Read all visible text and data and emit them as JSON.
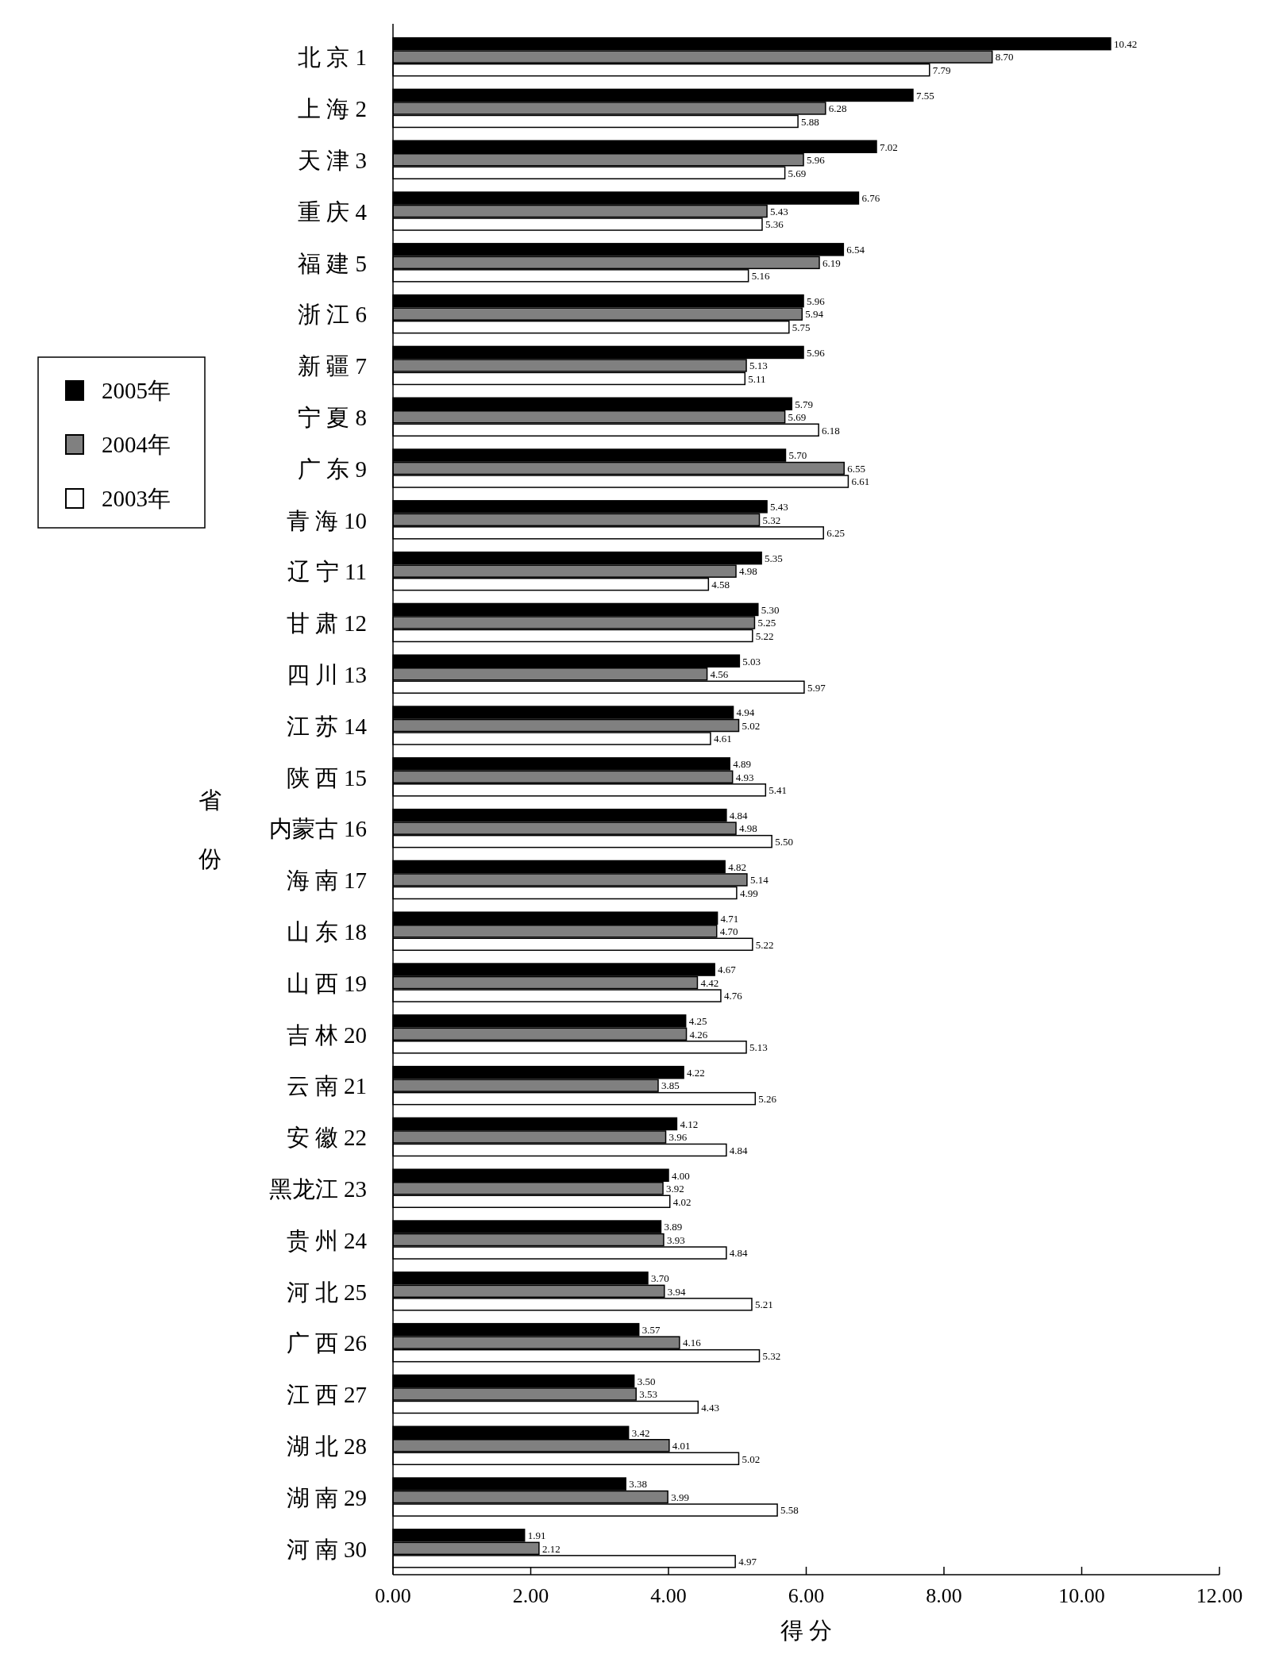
{
  "chart_data": {
    "type": "bar",
    "orientation": "horizontal",
    "xlabel": "得 分",
    "ylabel": "省份",
    "categories": [
      "北 京 1",
      "上 海 2",
      "天 津 3",
      "重 庆 4",
      "福 建 5",
      "浙 江 6",
      "新 疆 7",
      "宁 夏 8",
      "广 东 9",
      "青 海 10",
      "辽 宁 11",
      "甘 肃 12",
      "四 川 13",
      "江 苏 14",
      "陕 西 15",
      "内蒙古 16",
      "海 南 17",
      "山 东 18",
      "山 西 19",
      "吉 林 20",
      "云 南 21",
      "安 徽 22",
      "黑龙江 23",
      "贵 州 24",
      "河 北 25",
      "广 西 26",
      "江 西 27",
      "湖 北 28",
      "湖 南 29",
      "河 南 30"
    ],
    "series": [
      {
        "name": "2005年",
        "color": "#000000",
        "values": [
          10.42,
          7.55,
          7.02,
          6.76,
          6.54,
          5.96,
          5.96,
          5.79,
          5.7,
          5.43,
          5.35,
          5.3,
          5.03,
          4.94,
          4.89,
          4.84,
          4.82,
          4.71,
          4.67,
          4.25,
          4.22,
          4.12,
          4.0,
          3.89,
          3.7,
          3.57,
          3.5,
          3.42,
          3.38,
          1.91
        ],
        "value_labels": [
          "10.42",
          "7.55",
          "7.02",
          "6.76",
          "6.54",
          "5.96",
          "5.96",
          "5.79",
          "5.70",
          "5.43",
          "5.35",
          "5.30",
          "5.03",
          "4.94",
          "4.89",
          "4.84",
          "4.82",
          "4.71",
          "4.67",
          "4.25",
          "4.22",
          "4.12",
          "4.00",
          "3.89",
          "3.70",
          "3.57",
          "3.50",
          "3.42",
          "3.38",
          "1.91"
        ]
      },
      {
        "name": "2004年",
        "color": "#808080",
        "values": [
          8.7,
          6.28,
          5.96,
          5.43,
          6.19,
          5.94,
          5.13,
          5.69,
          6.55,
          5.32,
          4.98,
          5.25,
          4.56,
          5.02,
          4.93,
          4.98,
          5.14,
          4.7,
          4.42,
          4.26,
          3.85,
          3.96,
          3.92,
          3.93,
          3.94,
          4.16,
          3.53,
          4.01,
          3.99,
          2.12
        ],
        "value_labels": [
          "8.70",
          "6.28",
          "5.96",
          "5.43",
          "6.19",
          "5.94",
          "5.13",
          "5.69",
          "6.55",
          "5.32",
          "4.98",
          "5.25",
          "4.56",
          "5.02",
          "4.93",
          "4.98",
          "5.14",
          "4.70",
          "4.42",
          "4.26",
          "3.85",
          "3.96",
          "3.92",
          "3.93",
          "3.94",
          "4.16",
          "3.53",
          "4.01",
          "3.99",
          "2.12"
        ]
      },
      {
        "name": "2003年",
        "color": "#ffffff",
        "values": [
          7.79,
          5.88,
          5.69,
          5.36,
          5.16,
          5.75,
          5.11,
          6.18,
          6.61,
          6.25,
          4.58,
          5.22,
          5.97,
          4.61,
          5.41,
          5.5,
          4.99,
          5.22,
          4.76,
          5.13,
          5.26,
          4.84,
          4.02,
          4.84,
          5.21,
          5.32,
          4.43,
          5.02,
          5.58,
          4.97
        ],
        "value_labels": [
          "7.79",
          "5.88",
          "5.69",
          "5.36",
          "5.16",
          "5.75",
          "5.11",
          "6.18",
          "6.61",
          "6.25",
          "4.58",
          "5.22",
          "5.97",
          "4.61",
          "5.41",
          "5.50",
          "4.99",
          "5.22",
          "4.76",
          "5.13",
          "5.26",
          "4.84",
          "4.02",
          "4.84",
          "5.21",
          "5.32",
          "4.43",
          "5.02",
          "5.58",
          "4.97"
        ]
      }
    ],
    "xlim": [
      0,
      12
    ],
    "xticks": [
      {
        "value": 0,
        "label": "0.00"
      },
      {
        "value": 2,
        "label": "2.00"
      },
      {
        "value": 4,
        "label": "4.00"
      },
      {
        "value": 6,
        "label": "6.00"
      },
      {
        "value": 8,
        "label": "8.00"
      },
      {
        "value": 10,
        "label": "10.00"
      },
      {
        "value": 12,
        "label": "12.00"
      }
    ],
    "legend": "left",
    "grid": false
  }
}
